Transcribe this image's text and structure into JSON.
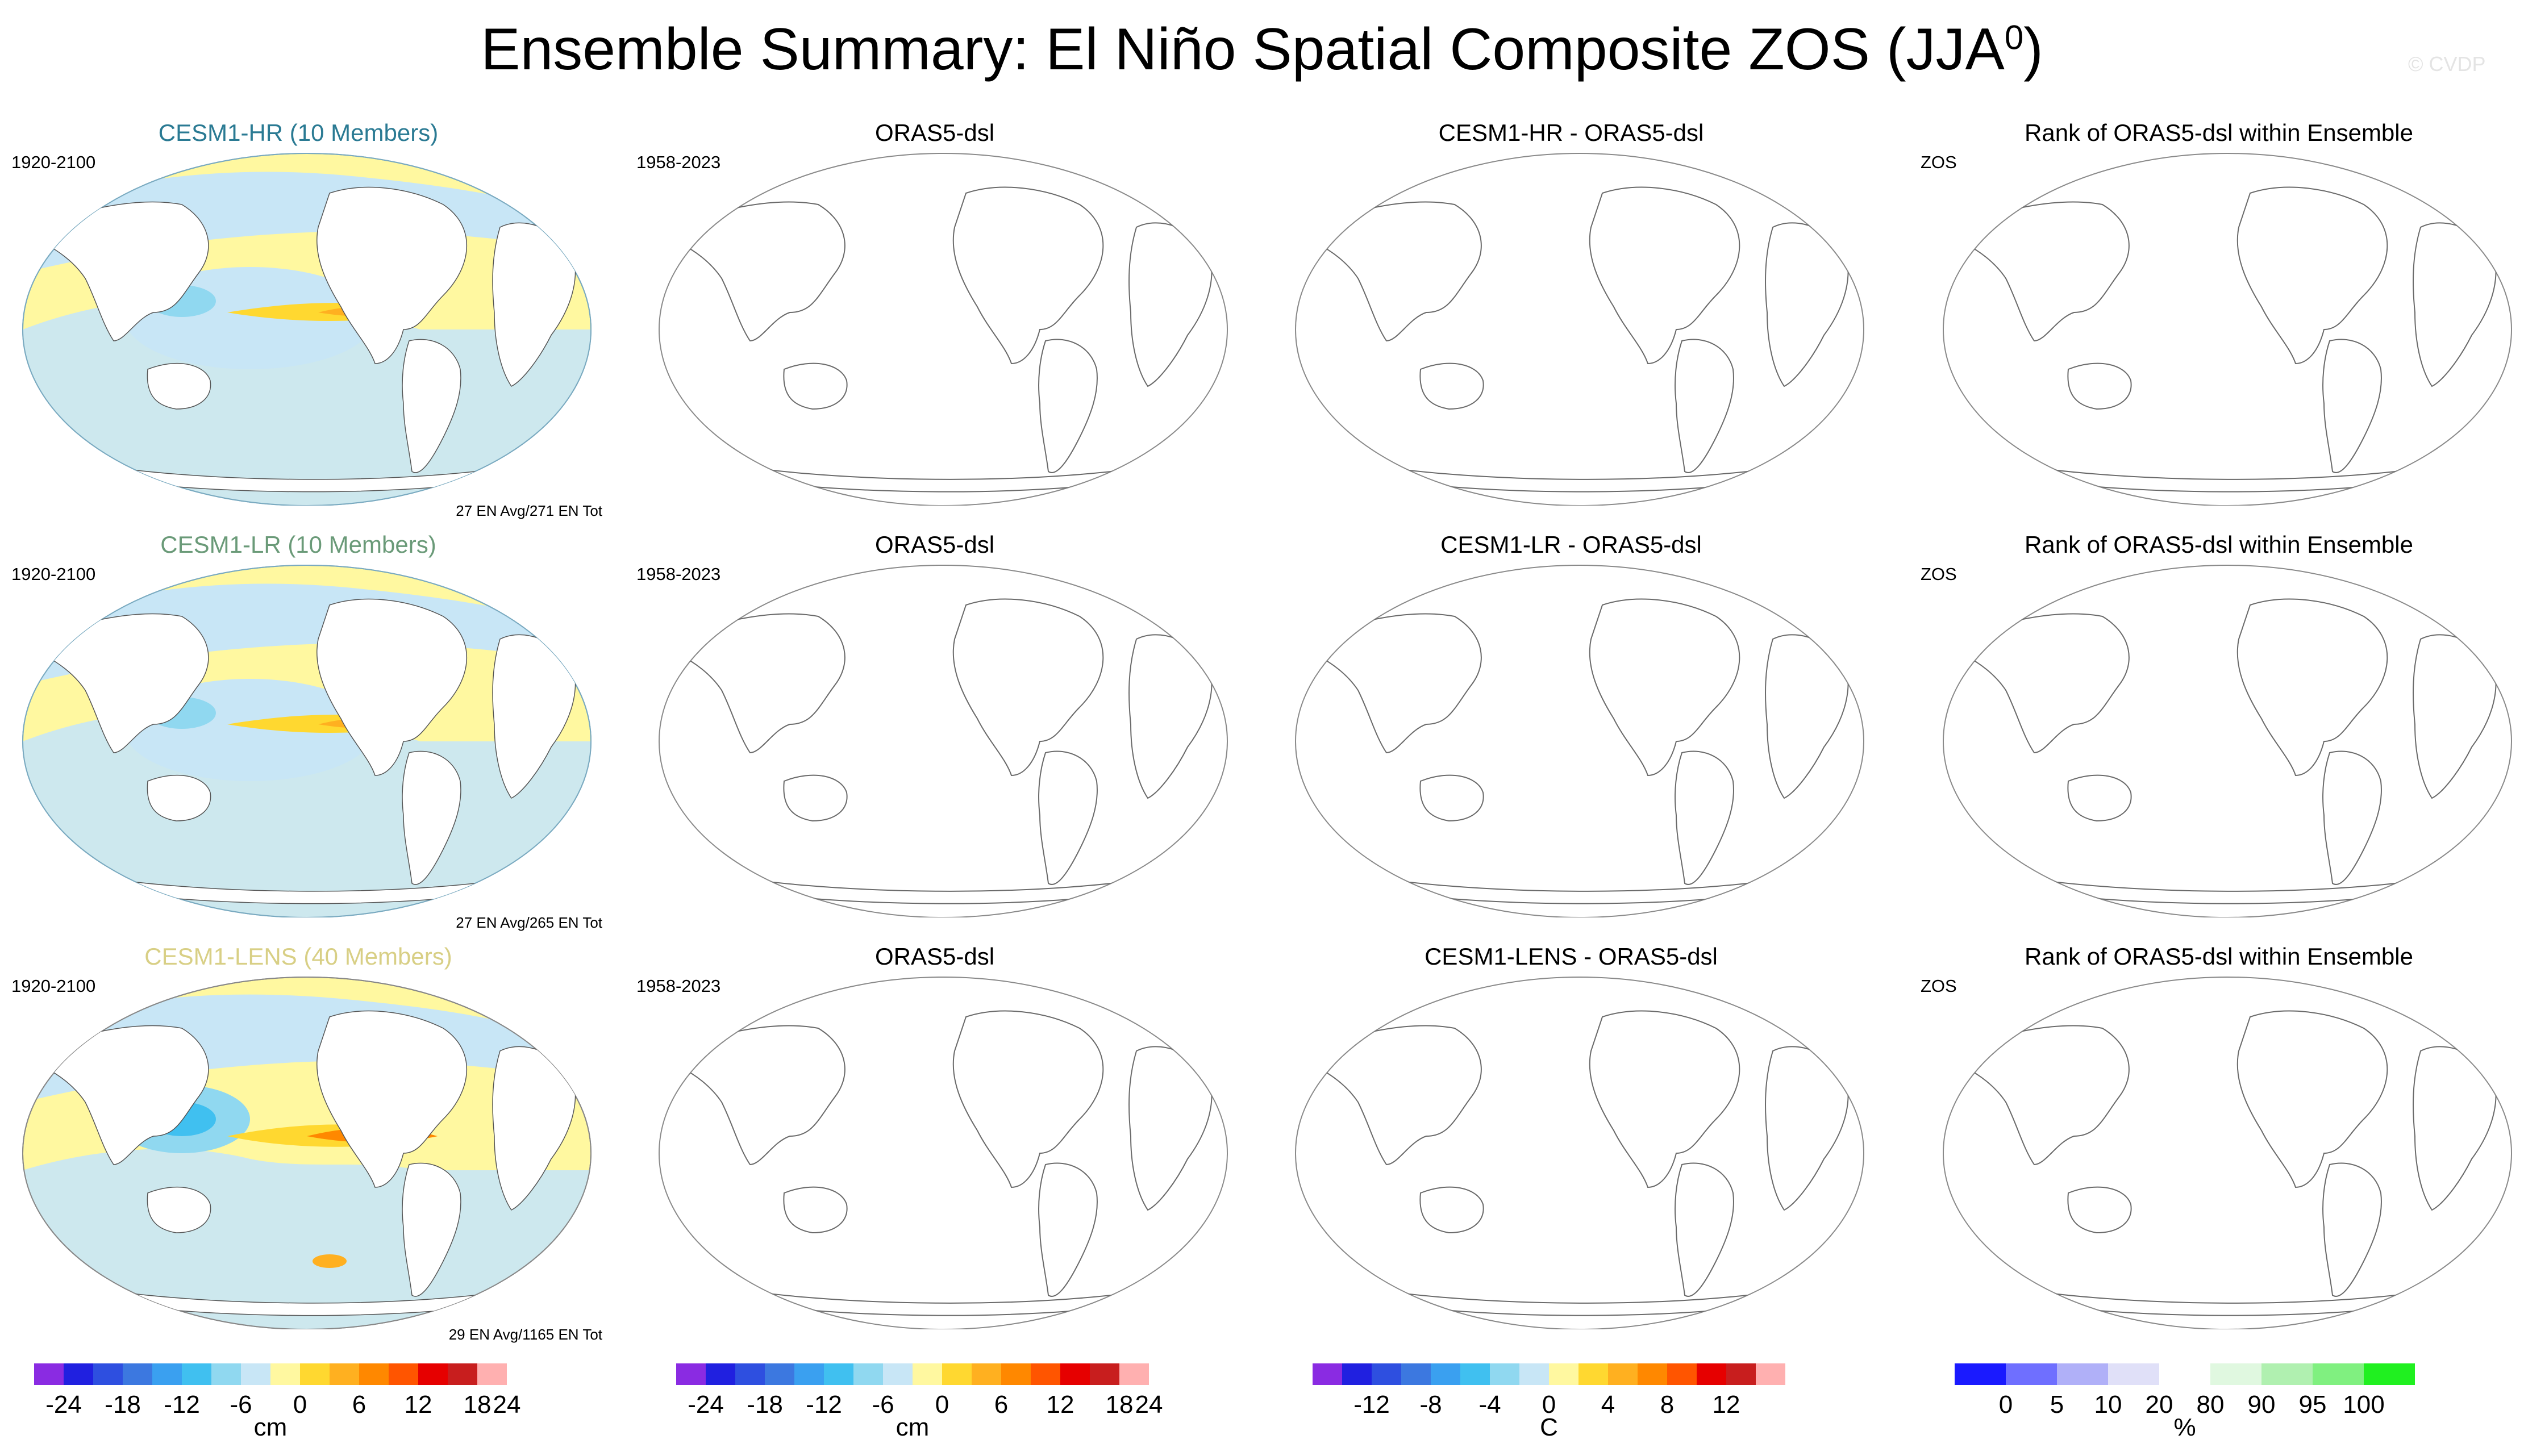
{
  "title_main": "Ensemble Summary: El Niño Spatial Composite ZOS (JJA",
  "title_sup": "0",
  "title_close": ")",
  "credit": "© CVDP",
  "rows": [
    {
      "model": {
        "title": "CESM1-HR (10 Members)",
        "title_color": "#2a7a93",
        "years": "1920-2100",
        "note": "27 EN Avg/271 EN Tot"
      },
      "obs": {
        "title": "ORAS5-dsl",
        "years": "1958-2023"
      },
      "diff": {
        "title": "CESM1-HR - ORAS5-dsl"
      },
      "rank": {
        "title": "Rank of ORAS5-dsl within Ensemble",
        "label": "ZOS"
      }
    },
    {
      "model": {
        "title": "CESM1-LR (10 Members)",
        "title_color": "#6a9a78",
        "years": "1920-2100",
        "note": "27 EN Avg/265 EN Tot"
      },
      "obs": {
        "title": "ORAS5-dsl",
        "years": "1958-2023"
      },
      "diff": {
        "title": "CESM1-LR - ORAS5-dsl"
      },
      "rank": {
        "title": "Rank of ORAS5-dsl within Ensemble",
        "label": "ZOS"
      }
    },
    {
      "model": {
        "title": "CESM1-LENS (40 Members)",
        "title_color": "#d8cf85",
        "years": "1920-2100",
        "note": "29 EN Avg/1165 EN Tot"
      },
      "obs": {
        "title": "ORAS5-dsl",
        "years": "1958-2023"
      },
      "diff": {
        "title": "CESM1-LENS - ORAS5-dsl"
      },
      "rank": {
        "title": "Rank of ORAS5-dsl within Ensemble",
        "label": "ZOS"
      }
    }
  ],
  "colorbars": [
    {
      "unit": "cm",
      "colors": [
        "#8a2be2",
        "#2020e0",
        "#2e4fe0",
        "#3c78e0",
        "#3aa0f0",
        "#40c0f0",
        "#90d8f0",
        "#c8e6f6",
        "#fff8a0",
        "#ffd830",
        "#ffb020",
        "#ff8800",
        "#ff5500",
        "#e60000",
        "#c81e1e",
        "#ffb0b0"
      ],
      "tick_labels": [
        "-24",
        "-18",
        "-12",
        "-6",
        "0",
        "6",
        "12",
        "18",
        "24"
      ],
      "tick_boundaries": [
        1,
        3,
        5,
        7,
        9,
        11,
        13,
        15,
        16
      ]
    },
    {
      "unit": "cm",
      "colors": [
        "#8a2be2",
        "#2020e0",
        "#2e4fe0",
        "#3c78e0",
        "#3aa0f0",
        "#40c0f0",
        "#90d8f0",
        "#c8e6f6",
        "#fff8a0",
        "#ffd830",
        "#ffb020",
        "#ff8800",
        "#ff5500",
        "#e60000",
        "#c81e1e",
        "#ffb0b0"
      ],
      "tick_labels": [
        "-24",
        "-18",
        "-12",
        "-6",
        "0",
        "6",
        "12",
        "18",
        "24"
      ],
      "tick_boundaries": [
        1,
        3,
        5,
        7,
        9,
        11,
        13,
        15,
        16
      ]
    },
    {
      "unit": "C",
      "colors": [
        "#8a2be2",
        "#2020e0",
        "#2e4fe0",
        "#3c78e0",
        "#3aa0f0",
        "#40c0f0",
        "#90d8f0",
        "#c8e6f6",
        "#fff8a0",
        "#ffd830",
        "#ffb020",
        "#ff8800",
        "#ff5500",
        "#e60000",
        "#c81e1e",
        "#ffb0b0"
      ],
      "tick_labels": [
        "-12",
        "-8",
        "-4",
        "0",
        "4",
        "8",
        "12"
      ],
      "tick_boundaries": [
        2,
        4,
        6,
        8,
        10,
        12,
        14
      ]
    },
    {
      "unit": "%",
      "colors": [
        "#1a1aff",
        "#6f6fff",
        "#b0b0f8",
        "#e0e0f8",
        "#ffffff",
        "#e0f8e0",
        "#b0f0b0",
        "#80f080",
        "#20f020"
      ],
      "tick_labels": [
        "0",
        "5",
        "10",
        "20",
        "80",
        "90",
        "95",
        "100"
      ],
      "tick_boundaries": [
        1,
        2,
        3,
        4,
        5,
        6,
        7,
        8
      ]
    }
  ]
}
